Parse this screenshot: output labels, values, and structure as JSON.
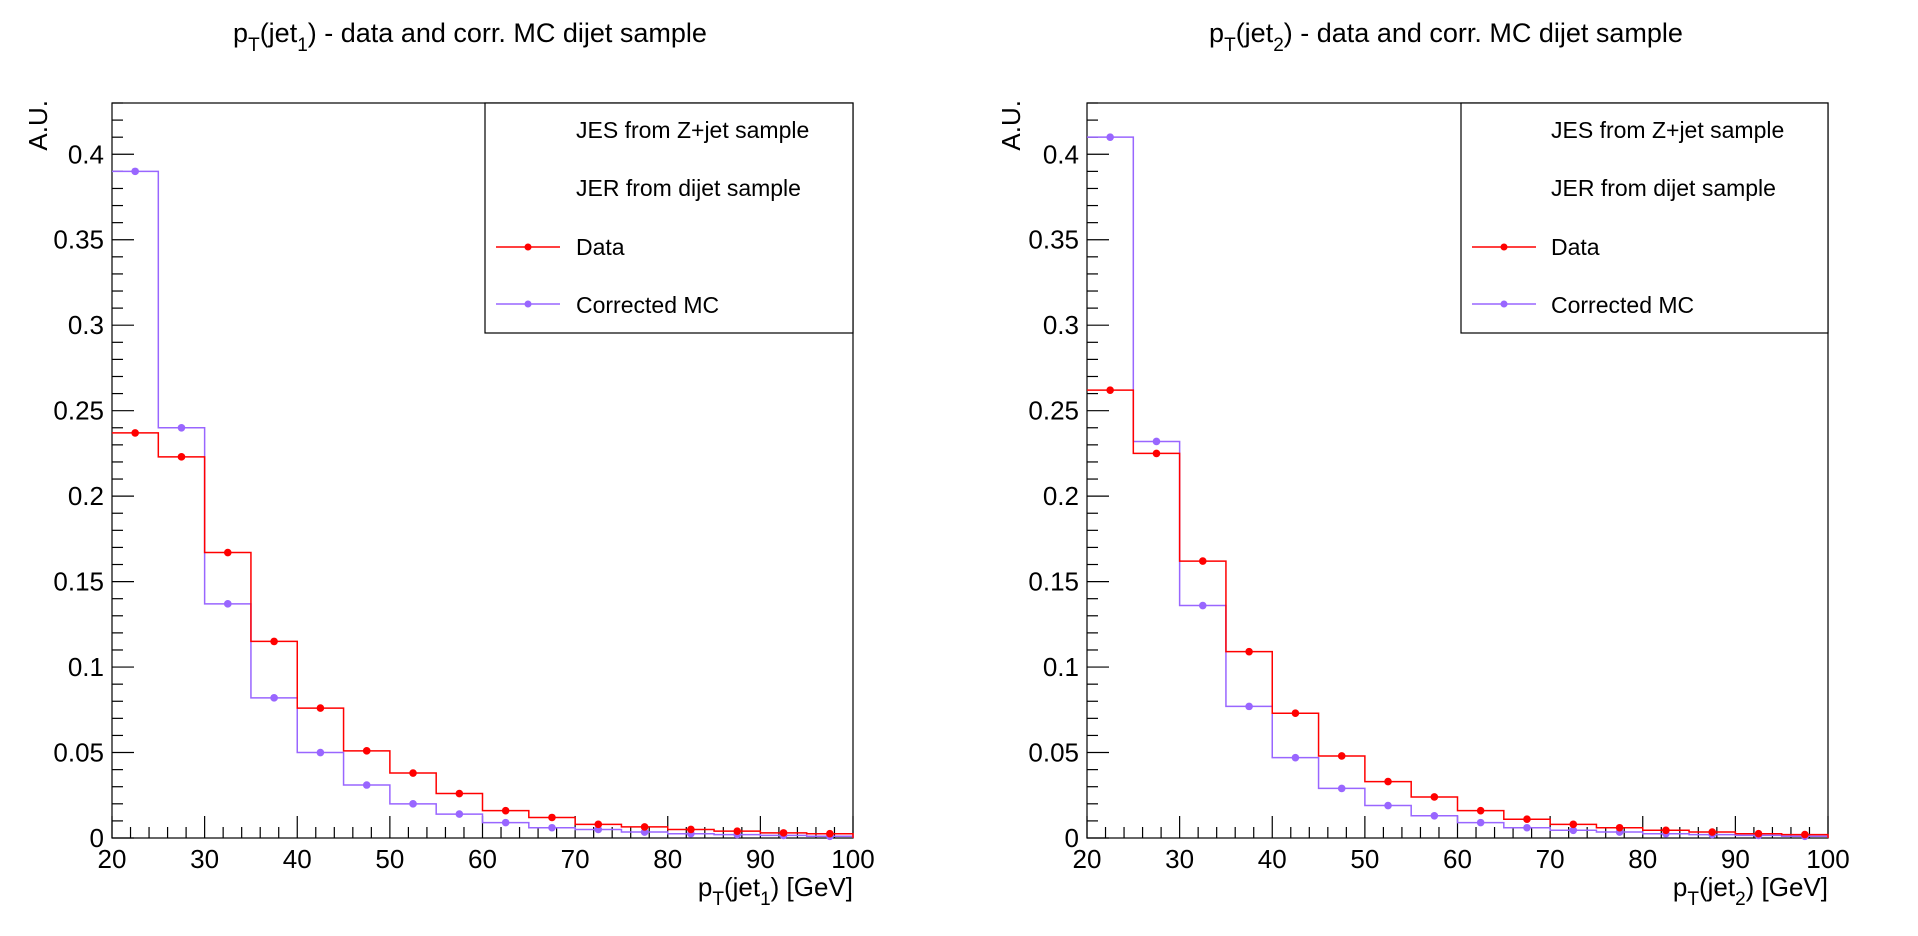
{
  "chart_data": [
    {
      "type": "step",
      "title": "p_T(jet_1) - data and corr. MC dijet sample",
      "title_parts": {
        "pre": "p",
        "sub1": "T",
        "mid": "(jet",
        "sub2": "1",
        "post": ") - data and corr. MC dijet sample"
      },
      "xlabel": "p_T(jet_1) [GeV]",
      "xlabel_parts": {
        "pre": "p",
        "sub1": "T",
        "mid": "(jet",
        "sub2": "1",
        "post": ") [GeV]"
      },
      "ylabel": "A.U.",
      "xlim": [
        20,
        100
      ],
      "ylim": [
        0,
        0.43
      ],
      "x_ticks": [
        "20",
        "30",
        "40",
        "50",
        "60",
        "70",
        "80",
        "90",
        "100"
      ],
      "y_ticks": [
        "0",
        "0.05",
        "0.1",
        "0.15",
        "0.2",
        "0.25",
        "0.3",
        "0.35",
        "0.4"
      ],
      "bin_edges": [
        20,
        25,
        30,
        35,
        40,
        45,
        50,
        55,
        60,
        65,
        70,
        75,
        80,
        85,
        90,
        95,
        100
      ],
      "legend": {
        "position": "top-right",
        "entries": [
          "JES from Z+jet sample",
          "JER from dijet sample",
          "Data",
          "Corrected MC"
        ]
      },
      "series": [
        {
          "name": "Data",
          "color": "#ff0000",
          "values": [
            0.237,
            0.223,
            0.167,
            0.115,
            0.076,
            0.051,
            0.038,
            0.026,
            0.016,
            0.012,
            0.008,
            0.0065,
            0.005,
            0.004,
            0.003,
            0.0025
          ]
        },
        {
          "name": "Corrected MC",
          "color": "#9966ff",
          "values": [
            0.39,
            0.24,
            0.137,
            0.082,
            0.05,
            0.031,
            0.02,
            0.014,
            0.009,
            0.006,
            0.005,
            0.0035,
            0.0025,
            0.002,
            0.0015,
            0.001
          ]
        }
      ]
    },
    {
      "type": "step",
      "title": "p_T(jet_2) - data and corr. MC dijet sample",
      "title_parts": {
        "pre": "p",
        "sub1": "T",
        "mid": "(jet",
        "sub2": "2",
        "post": ") - data and corr. MC dijet sample"
      },
      "xlabel": "p_T(jet_2) [GeV]",
      "xlabel_parts": {
        "pre": "p",
        "sub1": "T",
        "mid": "(jet",
        "sub2": "2",
        "post": ") [GeV]"
      },
      "ylabel": "A.U.",
      "xlim": [
        20,
        100
      ],
      "ylim": [
        0,
        0.43
      ],
      "x_ticks": [
        "20",
        "30",
        "40",
        "50",
        "60",
        "70",
        "80",
        "90",
        "100"
      ],
      "y_ticks": [
        "0",
        "0.05",
        "0.1",
        "0.15",
        "0.2",
        "0.25",
        "0.3",
        "0.35",
        "0.4"
      ],
      "bin_edges": [
        20,
        25,
        30,
        35,
        40,
        45,
        50,
        55,
        60,
        65,
        70,
        75,
        80,
        85,
        90,
        95,
        100
      ],
      "legend": {
        "position": "top-right",
        "entries": [
          "JES from Z+jet sample",
          "JER from dijet sample",
          "Data",
          "Corrected MC"
        ]
      },
      "series": [
        {
          "name": "Data",
          "color": "#ff0000",
          "values": [
            0.262,
            0.225,
            0.162,
            0.109,
            0.073,
            0.048,
            0.033,
            0.024,
            0.016,
            0.011,
            0.008,
            0.006,
            0.0045,
            0.0035,
            0.0025,
            0.002
          ]
        },
        {
          "name": "Corrected MC",
          "color": "#9966ff",
          "values": [
            0.41,
            0.232,
            0.136,
            0.077,
            0.047,
            0.029,
            0.019,
            0.013,
            0.009,
            0.006,
            0.0045,
            0.0035,
            0.0025,
            0.002,
            0.0015,
            0.001
          ]
        }
      ]
    }
  ]
}
